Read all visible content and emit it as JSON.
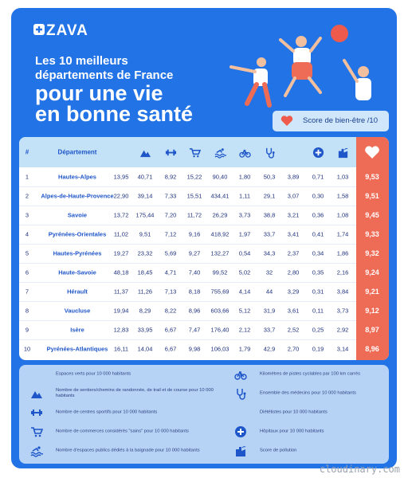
{
  "header": {
    "logo": "ZAVA",
    "title_line1": "Les 10 meilleurs",
    "title_line2": "départements de France",
    "headline_line1": "pour une vie",
    "headline_line2": "en bonne santé",
    "score_label": "Score de bien-être /10"
  },
  "table": {
    "columns": [
      "#",
      "Département"
    ],
    "rows": [
      [
        1,
        "Hautes-Alpes",
        "13,95",
        "40,71",
        "8,92",
        "15,22",
        "90,40",
        "1,80",
        "50,3",
        "3,89",
        "0,71",
        "1,03",
        "9,53"
      ],
      [
        2,
        "Alpes-de-Haute-Provence",
        "22,90",
        "39,14",
        "7,33",
        "15,51",
        "434,41",
        "1,11",
        "29,1",
        "3,07",
        "0,30",
        "1,58",
        "9,51"
      ],
      [
        3,
        "Savoie",
        "13,72",
        "175,44",
        "7,20",
        "11,72",
        "26,29",
        "3,73",
        "38,8",
        "3,21",
        "0,36",
        "1,08",
        "9,45"
      ],
      [
        4,
        "Pyrénées-Orientales",
        "11,02",
        "9,51",
        "7,12",
        "9,16",
        "418,92",
        "1,97",
        "33,7",
        "3,41",
        "0,41",
        "1,74",
        "9,33"
      ],
      [
        5,
        "Hautes-Pyrénées",
        "19,27",
        "23,32",
        "5,69",
        "9,27",
        "132,27",
        "0,54",
        "34,3",
        "2,37",
        "0,34",
        "1,86",
        "9,32"
      ],
      [
        6,
        "Haute-Savoie",
        "48,18",
        "18,45",
        "4,71",
        "7,40",
        "99,52",
        "5,02",
        "32",
        "2,80",
        "0,35",
        "2,16",
        "9,24"
      ],
      [
        7,
        "Hérault",
        "11,37",
        "11,26",
        "7,13",
        "8,18",
        "755,69",
        "4,14",
        "44",
        "3,29",
        "0,31",
        "3,84",
        "9,21"
      ],
      [
        8,
        "Vaucluse",
        "19,94",
        "8,29",
        "8,22",
        "8,96",
        "603,66",
        "5,12",
        "31,9",
        "3,61",
        "0,11",
        "3,73",
        "9,12"
      ],
      [
        9,
        "Isère",
        "12,83",
        "33,95",
        "6,67",
        "7,47",
        "176,40",
        "2,12",
        "33,7",
        "2,52",
        "0,25",
        "2,92",
        "8,97"
      ],
      [
        10,
        "Pyrénées-Atlantiques",
        "16,11",
        "14,04",
        "6,67",
        "9,98",
        "106,03",
        "1,79",
        "42,9",
        "2,70",
        "0,19",
        "3,14",
        "8,96"
      ]
    ]
  },
  "legend": {
    "left": [
      "Espaces verts pour 10 000 habitants",
      "Nombre de sentiers/chemins de randonnée, de trail et de course pour 10 000 habitants",
      "Nombre de centres sportifs pour 10 000 habitants",
      "Nombre de commerces considérés \"sains\" pour 10 000 habitants",
      "Nombre d'espaces publics dédiés à la baignade pour 10 000 habitants"
    ],
    "right": [
      "Kilomètres de pistes cyclables par 100 km carrés",
      "Ensemble des médecins pour 10 000 habitants",
      "Diététistes pour 10 000 habitants",
      "Hôpitaux pour 10 000 habitants",
      "Score de pollution"
    ]
  },
  "watermark": "cloudinary.com"
}
